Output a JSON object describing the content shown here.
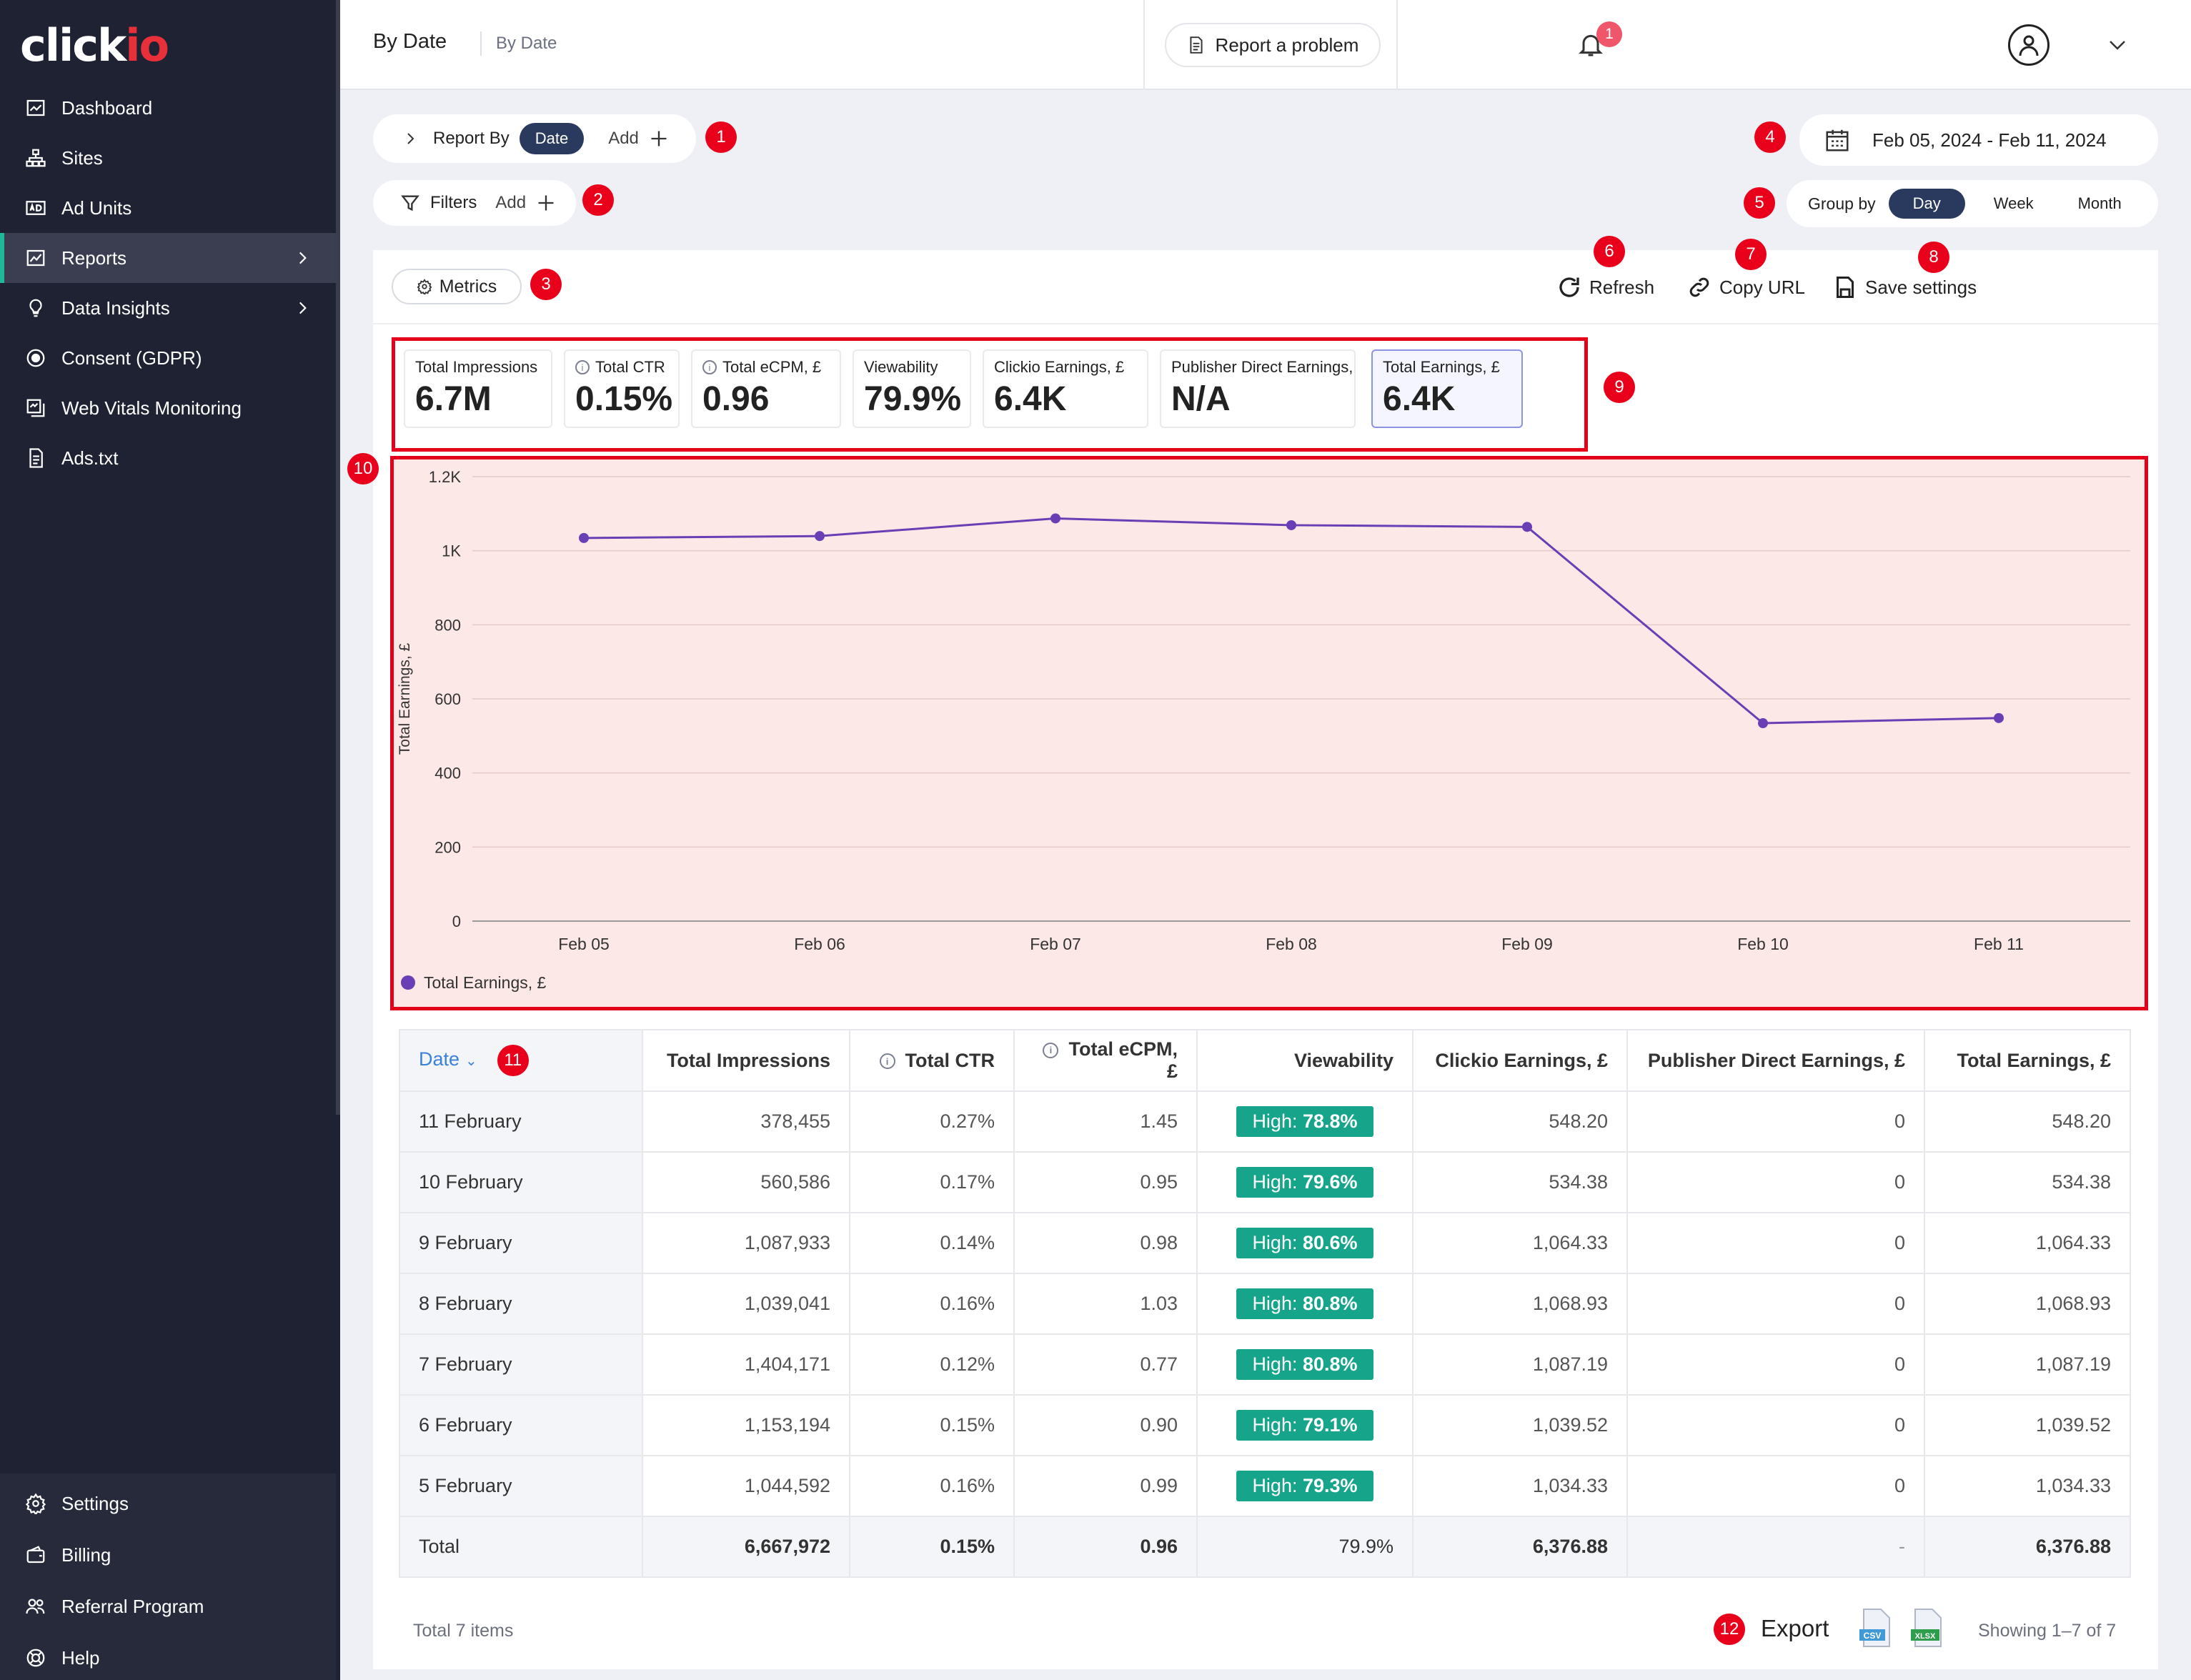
{
  "app": {
    "logo_text": "click",
    "logo_accent": "io"
  },
  "sidebar": {
    "items": [
      {
        "label": "Dashboard",
        "icon": "dashboard-icon"
      },
      {
        "label": "Sites",
        "icon": "sites-icon"
      },
      {
        "label": "Ad Units",
        "icon": "ad-units-icon"
      },
      {
        "label": "Reports",
        "icon": "reports-icon",
        "active": true
      },
      {
        "label": "Data Insights",
        "icon": "bulb-icon"
      },
      {
        "label": "Consent (GDPR)",
        "icon": "consent-icon"
      },
      {
        "label": "Web Vitals Monitoring",
        "icon": "monitor-icon"
      },
      {
        "label": "Ads.txt",
        "icon": "document-icon"
      }
    ],
    "bottom_items": [
      {
        "label": "Settings",
        "icon": "gear-icon"
      },
      {
        "label": "Billing",
        "icon": "wallet-icon"
      },
      {
        "label": "Referral Program",
        "icon": "users-icon"
      },
      {
        "label": "Help",
        "icon": "help-icon"
      }
    ]
  },
  "header": {
    "title": "By Date",
    "subtitle": "By Date",
    "report_problem": "Report a problem",
    "notification_count": "1"
  },
  "controls": {
    "report_by_label": "Report By",
    "report_by_chip": "Date",
    "add_label": "Add",
    "filters_label": "Filters",
    "filters_add": "Add",
    "date_range": "Feb 05, 2024 - Feb 11, 2024",
    "group_by_label": "Group by",
    "group_options": [
      "Day",
      "Week",
      "Month"
    ],
    "group_selected": "Day"
  },
  "toolbar": {
    "metrics": "Metrics",
    "refresh": "Refresh",
    "copy_url": "Copy URL",
    "save_settings": "Save settings"
  },
  "markers": [
    "1",
    "2",
    "3",
    "4",
    "5",
    "6",
    "7",
    "8",
    "9",
    "10",
    "11",
    "12"
  ],
  "kpis": [
    {
      "label": "Total Impressions",
      "value": "6.7M",
      "info": false
    },
    {
      "label": "Total CTR",
      "value": "0.15%",
      "info": true
    },
    {
      "label": "Total eCPM, £",
      "value": "0.96",
      "info": true
    },
    {
      "label": "Viewability",
      "value": "79.9%",
      "info": false
    },
    {
      "label": "Clickio Earnings, £",
      "value": "6.4K",
      "info": false
    },
    {
      "label": "Publisher Direct Earnings, £",
      "value": "N/A",
      "info": false
    },
    {
      "label": "Total Earnings, £",
      "value": "6.4K",
      "info": false,
      "selected": true
    }
  ],
  "chart_data": {
    "type": "line",
    "x": [
      "Feb 05",
      "Feb 06",
      "Feb 07",
      "Feb 08",
      "Feb 09",
      "Feb 10",
      "Feb 11"
    ],
    "series": [
      {
        "name": "Total Earnings, £",
        "values": [
          1034.33,
          1039.52,
          1087.19,
          1068.93,
          1064.33,
          534.38,
          548.2
        ],
        "color": "#6a3fb5"
      }
    ],
    "ylabel": "Total Earnings, £",
    "ylim": [
      0,
      1200
    ],
    "yticks": [
      "0",
      "200",
      "400",
      "600",
      "800",
      "1K",
      "1.2K"
    ],
    "ytick_values": [
      0,
      200,
      400,
      600,
      800,
      1000,
      1200
    ],
    "legend": "bottom-left",
    "grid": true
  },
  "table": {
    "headers": [
      "Date",
      "Total Impressions",
      "Total CTR",
      "Total eCPM, £",
      "Viewability",
      "Clickio Earnings, £",
      "Publisher Direct Earnings, £",
      "Total Earnings, £"
    ],
    "rows": [
      [
        "11 February",
        "378,455",
        "0.27%",
        "1.45",
        "78.8%",
        "548.20",
        "0",
        "548.20"
      ],
      [
        "10 February",
        "560,586",
        "0.17%",
        "0.95",
        "79.6%",
        "534.38",
        "0",
        "534.38"
      ],
      [
        "9 February",
        "1,087,933",
        "0.14%",
        "0.98",
        "80.6%",
        "1,064.33",
        "0",
        "1,064.33"
      ],
      [
        "8 February",
        "1,039,041",
        "0.16%",
        "1.03",
        "80.8%",
        "1,068.93",
        "0",
        "1,068.93"
      ],
      [
        "7 February",
        "1,404,171",
        "0.12%",
        "0.77",
        "80.8%",
        "1,087.19",
        "0",
        "1,087.19"
      ],
      [
        "6 February",
        "1,153,194",
        "0.15%",
        "0.90",
        "79.1%",
        "1,039.52",
        "0",
        "1,039.52"
      ],
      [
        "5 February",
        "1,044,592",
        "0.16%",
        "0.99",
        "79.3%",
        "1,034.33",
        "0",
        "1,034.33"
      ]
    ],
    "badge_prefix": "High: ",
    "total": [
      "Total",
      "6,667,972",
      "0.15%",
      "0.96",
      "79.9%",
      "6,376.88",
      "-",
      "6,376.88"
    ]
  },
  "footer": {
    "total_items": "Total 7 items",
    "export": "Export",
    "csv": "CSV",
    "xlsx": "XLSX",
    "showing": "Showing 1–7 of 7"
  },
  "colors": {
    "accent": "#2a3a5e",
    "teal": "#16a48b",
    "marker": "#e9001b",
    "line": "#6a3fb5"
  }
}
